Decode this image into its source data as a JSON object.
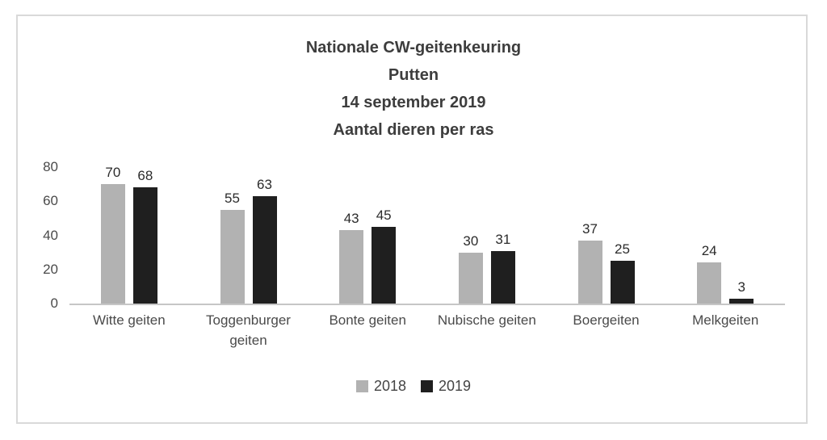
{
  "chart_data": {
    "type": "bar",
    "title_lines": [
      "Nationale CW-geitenkeuring",
      "Putten",
      "14 september 2019",
      "Aantal dieren per ras"
    ],
    "categories": [
      "Witte geiten",
      "Toggenburger geiten",
      "Bonte geiten",
      "Nubische geiten",
      "Boergeiten",
      "Melkgeiten"
    ],
    "series": [
      {
        "name": "2018",
        "color": "#b2b2b2",
        "values": [
          70,
          55,
          43,
          30,
          37,
          24
        ]
      },
      {
        "name": "2019",
        "color": "#1f1f1f",
        "values": [
          68,
          63,
          45,
          31,
          25,
          3
        ]
      }
    ],
    "y_ticks": [
      0,
      20,
      40,
      60,
      80
    ],
    "ylim": [
      0,
      80
    ],
    "grid": false,
    "legend_position": "bottom",
    "xlabel": "",
    "ylabel": ""
  },
  "colors": {
    "frame_border": "#d9d9d9",
    "axis_line": "#c6c6c6",
    "title_text": "#3d3d3d",
    "label_text": "#4a4a4a"
  }
}
